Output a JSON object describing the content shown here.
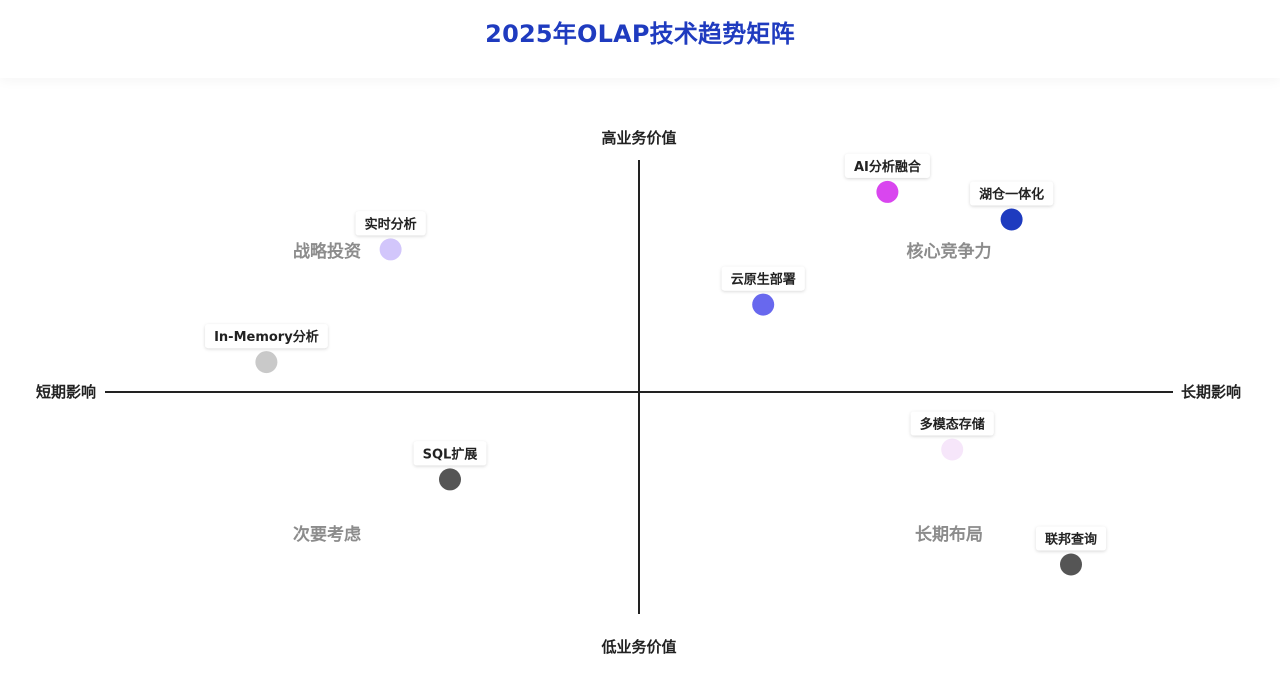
{
  "title": "2025年OLAP技术趋势矩阵",
  "chart_data": {
    "type": "scatter",
    "title": "2025年OLAP技术趋势矩阵",
    "x_axis": {
      "negative_label": "短期影响",
      "positive_label": "长期影响",
      "range": [
        -10,
        10
      ]
    },
    "y_axis": {
      "negative_label": "低业务价值",
      "positive_label": "高业务价值",
      "range": [
        -10,
        10
      ]
    },
    "quadrants": [
      {
        "label": "战略投资"
      },
      {
        "label": "核心竞争力"
      },
      {
        "label": "次要考虑"
      },
      {
        "label": "长期布局"
      }
    ],
    "points": [
      {
        "label": "AI分析融合",
        "x": 4.6,
        "y": 8.7,
        "color": "#d946ef"
      },
      {
        "label": "湖仓一体化",
        "x": 6.9,
        "y": 7.5,
        "color": "#1e3bbf"
      },
      {
        "label": "实时分析",
        "x": -4.6,
        "y": 6.2,
        "color": "#d2c6fb"
      },
      {
        "label": "云原生部署",
        "x": 2.3,
        "y": 3.8,
        "color": "#6868ee"
      },
      {
        "label": "In-Memory分析",
        "x": -6.9,
        "y": 1.3,
        "color": "#c9c9c9"
      },
      {
        "label": "多模态存储",
        "x": 5.8,
        "y": -2.5,
        "color": "#f6e6fa"
      },
      {
        "label": "SQL扩展",
        "x": -3.5,
        "y": -3.8,
        "color": "#555555"
      },
      {
        "label": "联邦查询",
        "x": 8.0,
        "y": -7.5,
        "color": "#555555"
      }
    ]
  }
}
